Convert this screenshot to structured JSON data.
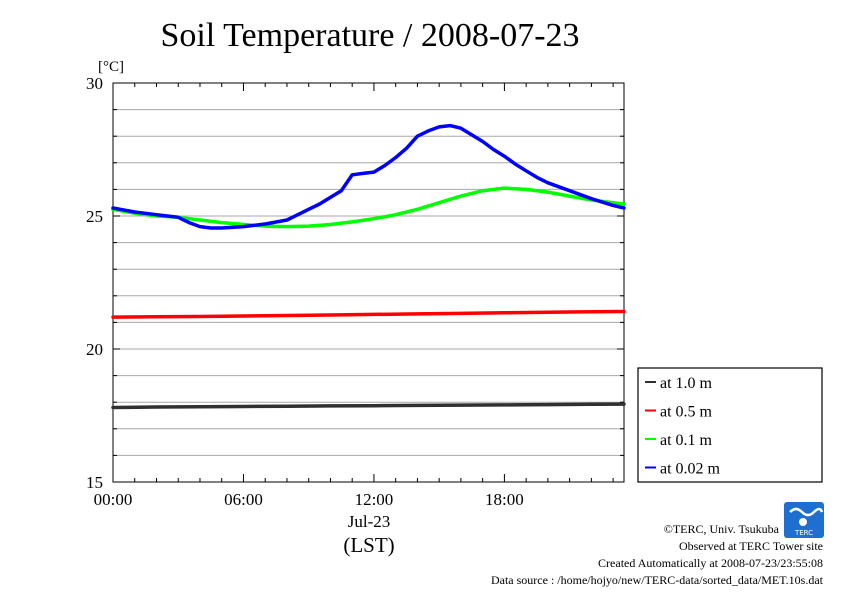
{
  "chart_data": {
    "type": "line",
    "title": "Soil Temperature / 2008-07-23",
    "ylabel": "[°C]",
    "xlabel": "(LST)",
    "x_date_label": "Jul-23",
    "xlim_hours": [
      0,
      23.5
    ],
    "ylim": [
      15,
      30
    ],
    "yticks": [
      "15",
      "20",
      "25",
      "30"
    ],
    "xticks": [
      "00:00",
      "06:00",
      "12:00",
      "18:00"
    ],
    "grid": true,
    "legend_position": "right-bottom-outside",
    "series": [
      {
        "name": "at 1.0 m",
        "color": "#303030",
        "x": [
          0,
          2,
          4,
          6,
          8,
          10,
          12,
          14,
          16,
          18,
          20,
          22,
          23.5
        ],
        "y": [
          17.8,
          17.82,
          17.83,
          17.84,
          17.85,
          17.86,
          17.87,
          17.88,
          17.89,
          17.9,
          17.91,
          17.92,
          17.93
        ]
      },
      {
        "name": "at 0.5 m",
        "color": "#ff0000",
        "x": [
          0,
          2,
          4,
          6,
          8,
          10,
          12,
          14,
          16,
          18,
          20,
          22,
          23.5
        ],
        "y": [
          21.2,
          21.21,
          21.22,
          21.24,
          21.26,
          21.28,
          21.3,
          21.32,
          21.34,
          21.36,
          21.38,
          21.4,
          21.41
        ]
      },
      {
        "name": "at 0.1 m",
        "color": "#00ff00",
        "x": [
          0,
          1,
          2,
          3,
          4,
          5,
          6,
          7,
          8,
          9,
          10,
          11,
          12,
          13,
          14,
          15,
          16,
          17,
          18,
          19,
          20,
          21,
          22,
          23,
          23.5
        ],
        "y": [
          25.25,
          25.1,
          25.0,
          24.95,
          24.85,
          24.75,
          24.68,
          24.62,
          24.6,
          24.62,
          24.68,
          24.78,
          24.9,
          25.05,
          25.25,
          25.5,
          25.75,
          25.95,
          26.05,
          26.0,
          25.9,
          25.75,
          25.6,
          25.5,
          25.45
        ]
      },
      {
        "name": "at 0.02 m",
        "color": "#0000ff",
        "x": [
          0,
          1,
          2,
          3,
          3.5,
          4,
          4.5,
          5,
          6,
          7,
          8,
          8.5,
          9,
          9.5,
          10,
          10.5,
          11,
          11.5,
          12,
          12.5,
          13,
          13.5,
          14,
          14.5,
          15,
          15.5,
          16,
          16.5,
          17,
          17.5,
          18,
          18.5,
          19,
          19.5,
          20,
          21,
          22,
          23,
          23.5
        ],
        "y": [
          25.3,
          25.15,
          25.05,
          24.95,
          24.75,
          24.6,
          24.55,
          24.55,
          24.6,
          24.7,
          24.85,
          25.05,
          25.25,
          25.45,
          25.7,
          25.95,
          26.55,
          26.6,
          26.65,
          26.9,
          27.2,
          27.55,
          28.0,
          28.2,
          28.35,
          28.4,
          28.3,
          28.05,
          27.8,
          27.5,
          27.25,
          26.95,
          26.7,
          26.45,
          26.25,
          25.95,
          25.65,
          25.4,
          25.3
        ]
      }
    ]
  },
  "footer": {
    "copyright": "©TERC, Univ. Tsukuba",
    "observed": "Observed at TERC Tower site",
    "created": "Created Automatically at 2008-07-23/23:55:08",
    "source": "Data source : /home/hojyo/new/TERC-data/sorted_data/MET.10s.dat",
    "logo_text": "TERC",
    "logo_color": "#1e6fd0"
  }
}
